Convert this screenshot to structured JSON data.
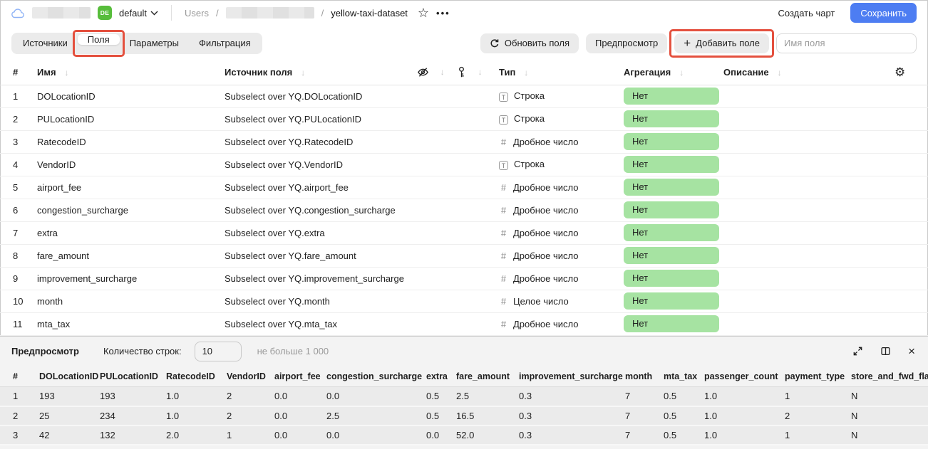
{
  "header": {
    "env_badge": "DE",
    "env_name": "default",
    "breadcrumb_root": "Users",
    "breadcrumb_sep": "/",
    "breadcrumb_current": "yellow-taxi-dataset",
    "star_icon": "☆",
    "menu_dots": "•••",
    "create_chart_label": "Создать чарт",
    "save_label": "Сохранить"
  },
  "toolbar": {
    "tabs": [
      {
        "label": "Источники",
        "active": false
      },
      {
        "label": "Поля",
        "active": true,
        "annotated": true
      },
      {
        "label": "Параметры",
        "active": false
      },
      {
        "label": "Фильтрация",
        "active": false
      }
    ],
    "refresh_fields_label": "Обновить поля",
    "preview_label": "Предпросмотр",
    "add_field_label": "Добавить поле",
    "field_name_placeholder": "Имя поля"
  },
  "fields_table": {
    "columns": {
      "index": "#",
      "name": "Имя",
      "source": "Источник поля",
      "type": "Тип",
      "aggregation": "Агрегация",
      "description": "Описание"
    },
    "sort_arrow": "↓",
    "rows": [
      {
        "index": "1",
        "name": "DOLocationID",
        "source": "Subselect over YQ.DOLocationID",
        "type_kind": "string",
        "type": "Строка",
        "aggregation": "Нет"
      },
      {
        "index": "2",
        "name": "PULocationID",
        "source": "Subselect over YQ.PULocationID",
        "type_kind": "string",
        "type": "Строка",
        "aggregation": "Нет"
      },
      {
        "index": "3",
        "name": "RatecodeID",
        "source": "Subselect over YQ.RatecodeID",
        "type_kind": "number",
        "type": "Дробное число",
        "aggregation": "Нет"
      },
      {
        "index": "4",
        "name": "VendorID",
        "source": "Subselect over YQ.VendorID",
        "type_kind": "string",
        "type": "Строка",
        "aggregation": "Нет"
      },
      {
        "index": "5",
        "name": "airport_fee",
        "source": "Subselect over YQ.airport_fee",
        "type_kind": "number",
        "type": "Дробное число",
        "aggregation": "Нет"
      },
      {
        "index": "6",
        "name": "congestion_surcharge",
        "source": "Subselect over YQ.congestion_surcharge",
        "type_kind": "number",
        "type": "Дробное число",
        "aggregation": "Нет"
      },
      {
        "index": "7",
        "name": "extra",
        "source": "Subselect over YQ.extra",
        "type_kind": "number",
        "type": "Дробное число",
        "aggregation": "Нет"
      },
      {
        "index": "8",
        "name": "fare_amount",
        "source": "Subselect over YQ.fare_amount",
        "type_kind": "number",
        "type": "Дробное число",
        "aggregation": "Нет"
      },
      {
        "index": "9",
        "name": "improvement_surcharge",
        "source": "Subselect over YQ.improvement_surcharge",
        "type_kind": "number",
        "type": "Дробное число",
        "aggregation": "Нет"
      },
      {
        "index": "10",
        "name": "month",
        "source": "Subselect over YQ.month",
        "type_kind": "number",
        "type": "Целое число",
        "aggregation": "Нет"
      },
      {
        "index": "11",
        "name": "mta_tax",
        "source": "Subselect over YQ.mta_tax",
        "type_kind": "number",
        "type": "Дробное число",
        "aggregation": "Нет"
      }
    ]
  },
  "preview_panel": {
    "title": "Предпросмотр",
    "row_count_label": "Количество строк:",
    "row_count_value": "10",
    "row_count_hint": "не больше 1 000",
    "table": {
      "columns": [
        "#",
        "DOLocationID",
        "PULocationID",
        "RatecodeID",
        "VendorID",
        "airport_fee",
        "congestion_surcharge",
        "extra",
        "fare_amount",
        "improvement_surcharge",
        "month",
        "mta_tax",
        "passenger_count",
        "payment_type",
        "store_and_fwd_flag"
      ],
      "rows": [
        [
          "1",
          "193",
          "193",
          "1.0",
          "2",
          "0.0",
          "0.0",
          "0.5",
          "2.5",
          "0.3",
          "7",
          "0.5",
          "1.0",
          "1",
          "N"
        ],
        [
          "2",
          "25",
          "234",
          "1.0",
          "2",
          "0.0",
          "2.5",
          "0.5",
          "16.5",
          "0.3",
          "7",
          "0.5",
          "1.0",
          "2",
          "N"
        ],
        [
          "3",
          "42",
          "132",
          "2.0",
          "1",
          "0.0",
          "0.0",
          "0.0",
          "52.0",
          "0.3",
          "7",
          "0.5",
          "1.0",
          "1",
          "N"
        ]
      ]
    }
  },
  "colors": {
    "accent_blue": "#4d7df2",
    "badge_green": "#57bd3b",
    "aggregation_pill_green": "#a6e3a2",
    "annotation_red": "#e4503e"
  }
}
